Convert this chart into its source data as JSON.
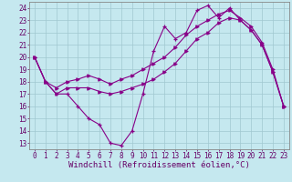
{
  "xlabel": "Windchill (Refroidissement éolien,°C)",
  "background_color": "#c5e8ef",
  "line_color": "#880088",
  "xlim": [
    -0.5,
    23.5
  ],
  "ylim": [
    12.5,
    24.5
  ],
  "xticks": [
    0,
    1,
    2,
    3,
    4,
    5,
    6,
    7,
    8,
    9,
    10,
    11,
    12,
    13,
    14,
    15,
    16,
    17,
    18,
    19,
    20,
    21,
    22,
    23
  ],
  "yticks": [
    13,
    14,
    15,
    16,
    17,
    18,
    19,
    20,
    21,
    22,
    23,
    24
  ],
  "series1": [
    20,
    18,
    17,
    17,
    16,
    15,
    14.5,
    13,
    12.8,
    14,
    17,
    20.5,
    22.5,
    21.5,
    22,
    23.8,
    24.2,
    23.2,
    24.0,
    23.0,
    22.2,
    21.0,
    18.8,
    16.0
  ],
  "series2": [
    20,
    18,
    17.0,
    17.5,
    17.5,
    17.5,
    17.2,
    17.0,
    17.2,
    17.5,
    17.8,
    18.2,
    18.8,
    19.5,
    20.5,
    21.5,
    22.0,
    22.8,
    23.2,
    23.0,
    22.2,
    21.0,
    18.8,
    16.0
  ],
  "series3": [
    20,
    18,
    17.5,
    18.0,
    18.2,
    18.5,
    18.2,
    17.8,
    18.2,
    18.5,
    19.0,
    19.5,
    20.0,
    20.8,
    21.8,
    22.5,
    23.0,
    23.5,
    23.8,
    23.2,
    22.5,
    21.2,
    19.0,
    16.0
  ],
  "grid_color": "#a0c8d0",
  "tick_label_size": 5.5,
  "xlabel_size": 6.5
}
